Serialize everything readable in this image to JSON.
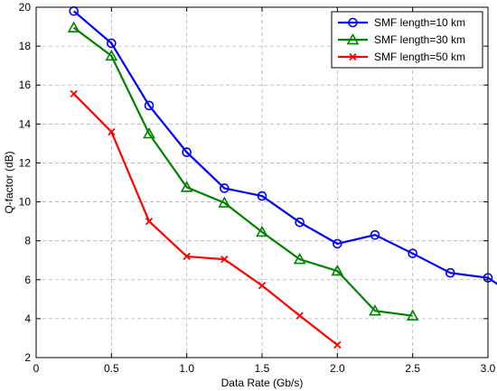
{
  "chart_data": {
    "type": "line",
    "title": "",
    "xlabel": "Data Rate (Gb/s)",
    "ylabel": "Q-factor (dB)",
    "xlim": [
      0,
      3.0
    ],
    "ylim": [
      2,
      20
    ],
    "xticks": [
      "0",
      "0.5",
      "1.0",
      "1.5",
      "2.0",
      "2.5",
      "3.0"
    ],
    "yticks": [
      "2",
      "4",
      "6",
      "8",
      "10",
      "12",
      "14",
      "16",
      "18",
      "20"
    ],
    "grid": true,
    "legend_position": "top-right",
    "series": [
      {
        "name": "SMF length=10 km",
        "color": "#0000ff",
        "marker": "circle",
        "x": [
          0.25,
          0.5,
          0.75,
          1.0,
          1.25,
          1.5,
          1.75,
          2.0,
          2.25,
          2.5,
          2.75,
          3.0,
          3.25
        ],
        "y": [
          19.8,
          18.15,
          14.95,
          12.55,
          10.7,
          10.3,
          8.95,
          7.85,
          8.3,
          7.35,
          6.35,
          6.1,
          4.8
        ]
      },
      {
        "name": "SMF length=30 km",
        "color": "#008000",
        "marker": "triangle",
        "x": [
          0.25,
          0.5,
          0.75,
          1.0,
          1.25,
          1.5,
          1.75,
          2.0,
          2.25,
          2.5
        ],
        "y": [
          18.95,
          17.5,
          13.5,
          10.75,
          9.95,
          8.45,
          7.05,
          6.45,
          4.4,
          4.15
        ]
      },
      {
        "name": "SMF length=50 km",
        "color": "#ff0000",
        "marker": "x",
        "x": [
          0.25,
          0.5,
          0.75,
          1.0,
          1.25,
          1.5,
          1.75,
          2.0
        ],
        "y": [
          15.55,
          13.6,
          9.0,
          7.2,
          7.05,
          5.7,
          4.15,
          2.65
        ]
      }
    ]
  }
}
